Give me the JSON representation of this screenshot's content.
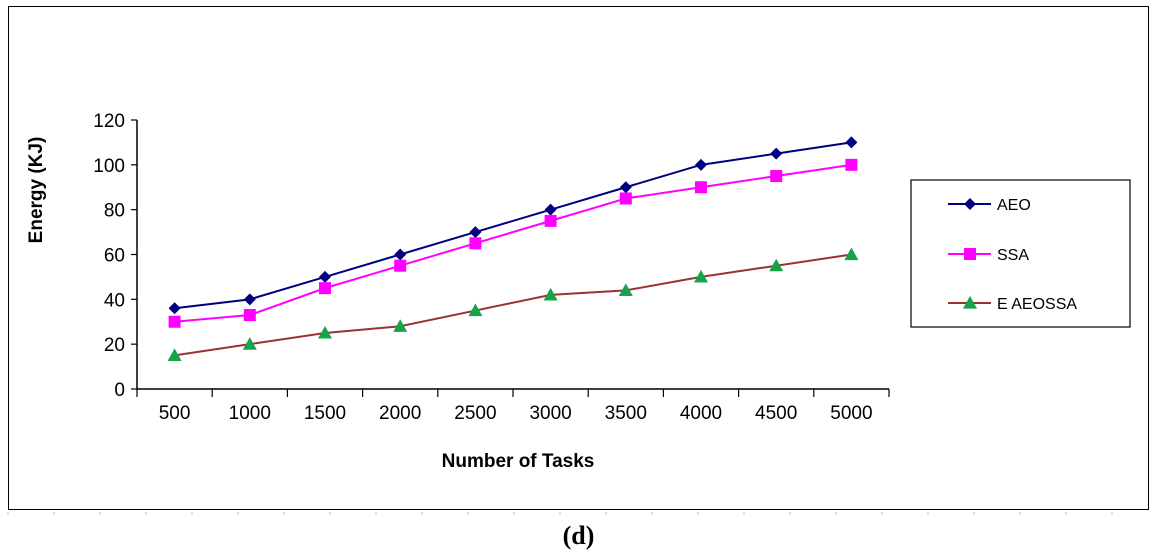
{
  "chart_data": {
    "type": "line",
    "title": "",
    "xlabel": "Number of Tasks",
    "ylabel": "Energy (KJ)",
    "categories": [
      "500",
      "1000",
      "1500",
      "2000",
      "2500",
      "3000",
      "3500",
      "4000",
      "4500",
      "5000"
    ],
    "ylim": [
      0,
      120
    ],
    "yticks": [
      0,
      20,
      40,
      60,
      80,
      100,
      120
    ],
    "grid": false,
    "legend": "right",
    "series": [
      {
        "name": "AEO",
        "color": "#000080",
        "marker": "diamond",
        "values": [
          36,
          40,
          50,
          60,
          70,
          80,
          90,
          100,
          105,
          110
        ]
      },
      {
        "name": "SSA",
        "color": "#ff00ff",
        "marker": "square",
        "values": [
          30,
          33,
          45,
          55,
          65,
          75,
          85,
          90,
          95,
          100
        ]
      },
      {
        "name": "E AEOSSA",
        "color": "#993333",
        "marker_color": "#17a34a",
        "marker": "triangle",
        "values": [
          15,
          20,
          25,
          28,
          35,
          42,
          44,
          50,
          55,
          60
        ]
      }
    ]
  },
  "caption": "(d)"
}
